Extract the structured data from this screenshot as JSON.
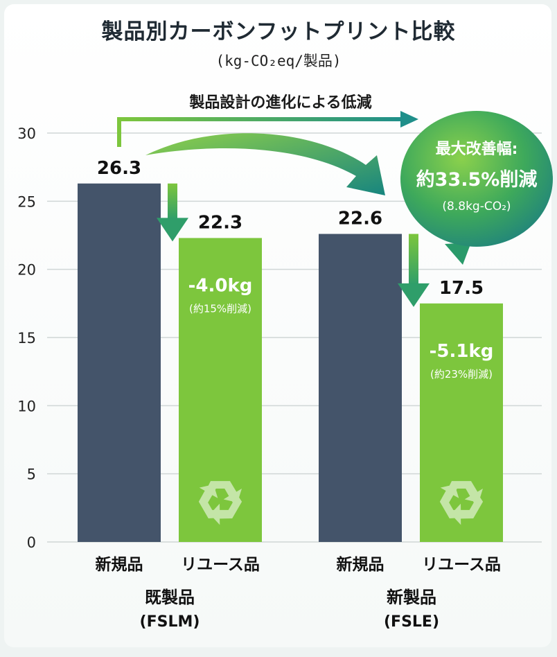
{
  "chart_data": {
    "type": "bar",
    "title": "製品別カーボンフットプリント比較",
    "subtitle": "(kg-CO₂eq/製品)",
    "ylim": [
      0,
      30
    ],
    "yticks": [
      0,
      5,
      10,
      15,
      20,
      25,
      30
    ],
    "grid": true,
    "groups": [
      {
        "name": "既製品",
        "code": "(FSLM)",
        "bars": [
          {
            "label": "新規品",
            "value": 26.3,
            "value_label": "26.3",
            "kind": "new"
          },
          {
            "label": "リユース品",
            "value": 22.3,
            "value_label": "22.3",
            "kind": "reuse",
            "reduction": "-4.0kg",
            "reduction_pct": "(約15%削減)"
          }
        ]
      },
      {
        "name": "新製品",
        "code": "(FSLE)",
        "bars": [
          {
            "label": "新規品",
            "value": 22.6,
            "value_label": "22.6",
            "kind": "new"
          },
          {
            "label": "リユース品",
            "value": 17.5,
            "value_label": "17.5",
            "kind": "reuse",
            "reduction": "-5.1kg",
            "reduction_pct": "(約23%削減)"
          }
        ]
      }
    ],
    "annotations": {
      "design_arrow_label": "製品設計の進化による低減",
      "max_reduction_line1": "最大改善幅:",
      "max_reduction_line2": "約33.5%削減",
      "max_reduction_line3": "(8.8kg-CO₂)"
    },
    "colors": {
      "new": "#44546a",
      "reuse": "#7dc63d",
      "arrow_green": "#3fae54",
      "arrow_teal": "#1e8f86",
      "grid": "#d0d6d6"
    }
  }
}
